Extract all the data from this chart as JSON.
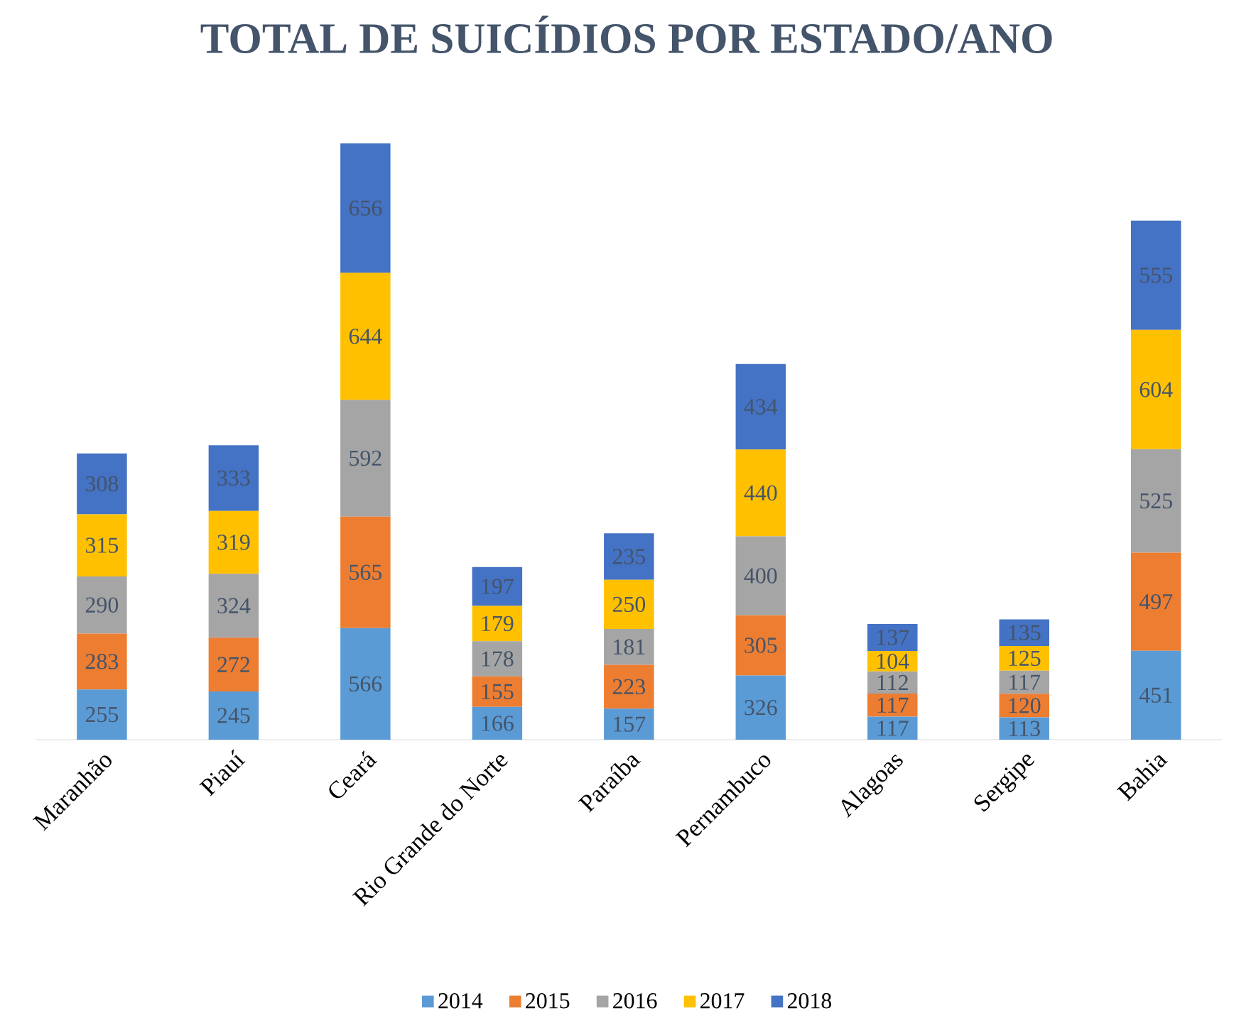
{
  "chart_data": {
    "type": "bar",
    "title": "TOTAL DE SUICÍDIOS  POR ESTADO/ANO",
    "stacked": true,
    "data_labels": true,
    "legend": "bottom",
    "categories": [
      "Maranhão",
      "Piauí",
      "Ceará",
      "Rio Grande do Norte",
      "Paraíba",
      "Pernambuco",
      "Alagoas",
      "Sergipe",
      "Bahia"
    ],
    "series": [
      {
        "name": "2014",
        "color": "#5b9bd5",
        "values": [
          255,
          245,
          566,
          166,
          157,
          326,
          117,
          113,
          451
        ]
      },
      {
        "name": "2015",
        "color": "#ed7d31",
        "values": [
          283,
          272,
          565,
          155,
          223,
          305,
          117,
          120,
          497
        ]
      },
      {
        "name": "2016",
        "color": "#a5a5a5",
        "values": [
          290,
          324,
          592,
          178,
          181,
          400,
          112,
          117,
          525
        ]
      },
      {
        "name": "2017",
        "color": "#ffc000",
        "values": [
          315,
          319,
          644,
          179,
          250,
          440,
          104,
          125,
          604
        ]
      },
      {
        "name": "2018",
        "color": "#4472c4",
        "values": [
          308,
          333,
          656,
          197,
          235,
          434,
          137,
          135,
          555
        ]
      }
    ]
  }
}
